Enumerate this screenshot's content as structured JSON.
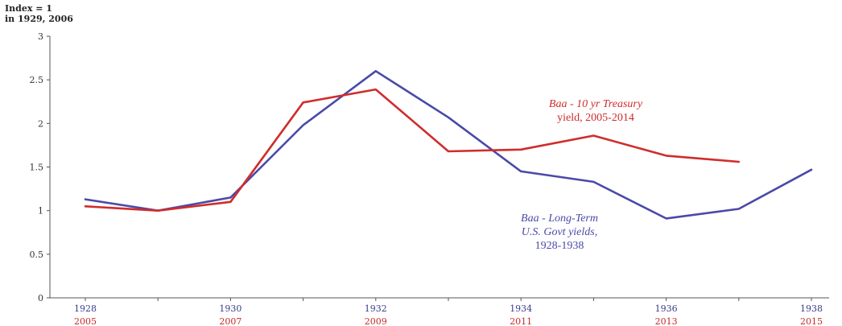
{
  "chart_data": {
    "type": "line",
    "unit_label": [
      "Index = 1",
      "in 1929, 2006"
    ],
    "xlabel": "",
    "ylabel": "",
    "ylim": [
      0,
      3
    ],
    "yticks": [
      "0",
      "0.5",
      "1",
      "1.5",
      "2",
      "2.5",
      "3"
    ],
    "yticks_values": [
      0,
      0.5,
      1,
      1.5,
      2,
      2.5,
      3
    ],
    "xtick_labels_top": [
      "1928",
      "1930",
      "1932",
      "1934",
      "1936",
      "1938"
    ],
    "xtick_labels_bottom": [
      "2005",
      "2007",
      "2009",
      "2011",
      "2013",
      "2015"
    ],
    "x_top": [
      1928,
      1929,
      1930,
      1931,
      1932,
      1933,
      1934,
      1935,
      1936,
      1937,
      1938
    ],
    "x_bottom": [
      2005,
      2006,
      2007,
      2008,
      2009,
      2010,
      2011,
      2012,
      2013,
      2014,
      2015
    ],
    "grid": false,
    "series": [
      {
        "name": "Baa - Long-Term U.S. Govt yields, 1928-1938",
        "x_axis": "top",
        "color": "#4a4aa8",
        "x": [
          1928,
          1929,
          1930,
          1931,
          1932,
          1933,
          1934,
          1935,
          1936,
          1937,
          1938
        ],
        "values": [
          1.13,
          1.0,
          1.15,
          1.98,
          2.6,
          2.07,
          1.45,
          1.33,
          0.91,
          1.02,
          1.47
        ]
      },
      {
        "name": "Baa - 10 yr Treasury yield, 2005-2014",
        "x_axis": "bottom",
        "color": "#d02c2c",
        "x": [
          2005,
          2006,
          2007,
          2008,
          2009,
          2010,
          2011,
          2012,
          2013,
          2014
        ],
        "values": [
          1.05,
          1.0,
          1.1,
          2.24,
          2.39,
          1.68,
          1.7,
          1.86,
          1.63,
          1.56
        ]
      }
    ],
    "annotations": {
      "red": {
        "line1": "Baa - 10 yr Treasury",
        "line2": "yield, 2005-2014"
      },
      "blue": {
        "line1": "Baa - Long-Term",
        "line2": "U.S. Govt yields,",
        "line3": "1928-1938"
      }
    }
  }
}
